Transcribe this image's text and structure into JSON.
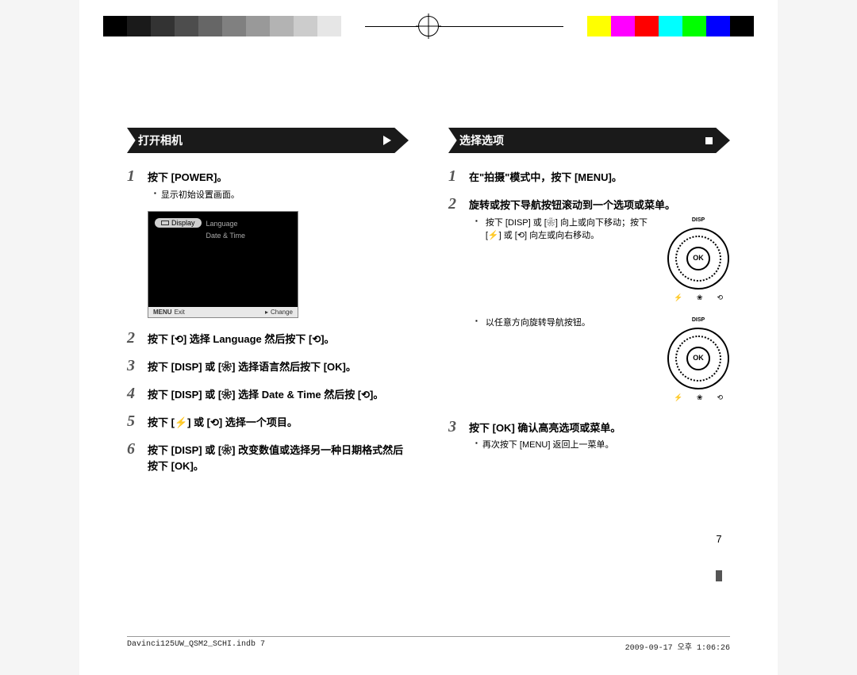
{
  "colorbar": {
    "left_swatches": [
      "#000000",
      "#1a1a1a",
      "#333333",
      "#4d4d4d",
      "#666666",
      "#808080",
      "#999999",
      "#b3b3b3",
      "#cccccc",
      "#e6e6e6",
      "#ffffff"
    ],
    "right_swatches": [
      "#ffffff",
      "#ffff00",
      "#ff00ff",
      "#ff0000",
      "#00ffff",
      "#00ff00",
      "#0000ff",
      "#000000"
    ]
  },
  "left": {
    "header": "打开相机",
    "steps": {
      "s1": {
        "num": "1",
        "main_pre": "按下 [",
        "key": "POWER",
        "main_post": "]。",
        "bullet": "显示初始设置画面。"
      },
      "screenshot": {
        "pill": "Display",
        "opt1": "Language",
        "opt2": "Date & Time",
        "footer_left": "Exit",
        "footer_left_key": "MENU",
        "footer_right": "Change"
      },
      "s2": {
        "num": "2",
        "text": "按下 [⟲] 选择 Language 然后按下 [⟲]。"
      },
      "s3": {
        "num": "3",
        "text": "按下 [DISP] 或 [❀] 选择语言然后按下 [OK]。"
      },
      "s4": {
        "num": "4",
        "text": "按下 [DISP] 或 [❀] 选择 Date & Time 然后按 [⟲]。"
      },
      "s5": {
        "num": "5",
        "text": "按下 [⚡] 或 [⟲] 选择一个项目。"
      },
      "s6": {
        "num": "6",
        "text": "按下 [DISP] 或 [❀] 改变数值或选择另一种日期格式然后按下 [OK]。"
      }
    }
  },
  "right": {
    "header": "选择选项",
    "steps": {
      "s1": {
        "num": "1",
        "text": "在\"拍摄\"模式中，按下 [MENU]。"
      },
      "s2": {
        "num": "2",
        "text": "旋转或按下导航按钮滚动到一个选项或菜单。",
        "bullet1": "按下 [DISP] 或 [❀] 向上或向下移动；按下 [⚡] 或 [⟲] 向左或向右移动。",
        "bullet2": "以任意方向旋转导航按钮。"
      },
      "s3": {
        "num": "3",
        "text": "按下 [OK] 确认高亮选项或菜单。",
        "bullet": "再次按下 [MENU] 返回上一菜单。"
      }
    },
    "dial": {
      "top": "DISP",
      "ok": "OK"
    }
  },
  "page_number": "7",
  "page_bars": [
    "#ffffff",
    "#ffffff",
    "#555555",
    "#ffffff",
    "#ffffff"
  ],
  "footer": {
    "left": "Davinci125UW_QSM2_SCHI.indb   7",
    "right": "2009-09-17   오후 1:06:26"
  }
}
